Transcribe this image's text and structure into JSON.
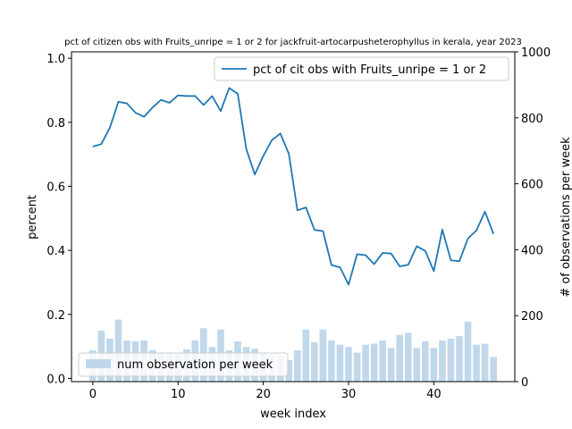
{
  "chart_data": {
    "type": "bar+line",
    "title": "pct of citizen obs with Fruits_unripe = 1 or 2 for jackfruit-artocarpusheterophyllus in kerala, year 2023",
    "xlabel": "week index",
    "ylabel_left": "percent",
    "ylabel_right": "# of observations per week",
    "xlim": [
      -2.5,
      49.5
    ],
    "ylim_left": [
      -0.01,
      1.02
    ],
    "ylim_right": [
      0,
      1000
    ],
    "xticks": [
      0,
      10,
      20,
      30,
      40
    ],
    "yticks_left": [
      0.0,
      0.2,
      0.4,
      0.6,
      0.8,
      1.0
    ],
    "yticks_right": [
      0,
      200,
      400,
      600,
      800,
      1000
    ],
    "colors": {
      "line": "#1f77b4",
      "bar": "#a6c8e3"
    },
    "legend": {
      "line_label": "pct of cit obs with Fruits_unripe = 1 or 2",
      "bar_label": "num observation per week",
      "line_loc": "upper right",
      "bar_loc": "lower left"
    },
    "x": [
      0,
      1,
      2,
      3,
      4,
      5,
      6,
      7,
      8,
      9,
      10,
      11,
      12,
      13,
      14,
      15,
      16,
      17,
      18,
      19,
      20,
      21,
      22,
      23,
      24,
      25,
      26,
      27,
      28,
      29,
      30,
      31,
      32,
      33,
      34,
      35,
      36,
      37,
      38,
      39,
      40,
      41,
      42,
      43,
      44,
      45,
      46,
      47
    ],
    "line_values": [
      0.724,
      0.732,
      0.783,
      0.864,
      0.859,
      0.83,
      0.817,
      0.846,
      0.87,
      0.861,
      0.884,
      0.882,
      0.882,
      0.854,
      0.882,
      0.835,
      0.907,
      0.889,
      0.717,
      0.637,
      0.695,
      0.744,
      0.765,
      0.701,
      0.525,
      0.534,
      0.464,
      0.46,
      0.354,
      0.347,
      0.293,
      0.388,
      0.385,
      0.357,
      0.392,
      0.39,
      0.35,
      0.355,
      0.413,
      0.398,
      0.335,
      0.465,
      0.369,
      0.366,
      0.437,
      0.462,
      0.521,
      0.451
    ],
    "bar_values": [
      95,
      155,
      130,
      188,
      125,
      122,
      125,
      95,
      85,
      85,
      85,
      98,
      125,
      162,
      105,
      158,
      95,
      122,
      105,
      100,
      85,
      82,
      80,
      65,
      95,
      158,
      120,
      158,
      125,
      112,
      105,
      88,
      112,
      115,
      125,
      102,
      142,
      148,
      102,
      122,
      102,
      125,
      130,
      138,
      182,
      112,
      115,
      75
    ]
  }
}
